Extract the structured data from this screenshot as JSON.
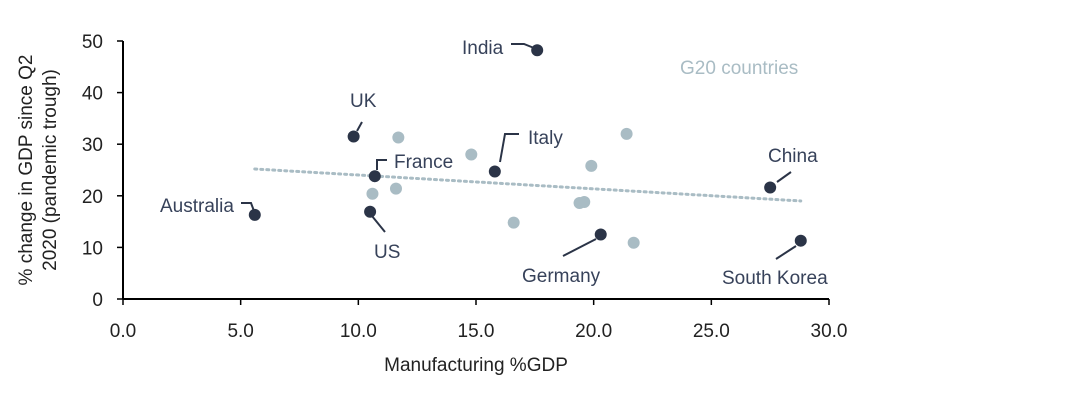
{
  "chart_data": {
    "type": "scatter",
    "title": "",
    "xlabel": "Manufacturing %GDP",
    "ylabel_lines": [
      "% change in GDP since Q2",
      "2020 (pandemic trough)"
    ],
    "xlim": [
      0,
      30
    ],
    "ylim": [
      0,
      50
    ],
    "x_ticks": [
      0,
      5,
      10,
      15,
      20,
      25,
      30
    ],
    "x_tick_labels": [
      "0.0",
      "5.0",
      "10.0",
      "15.0",
      "20.0",
      "25.0",
      "30.0"
    ],
    "y_ticks": [
      0,
      10,
      20,
      30,
      40,
      50
    ],
    "y_tick_labels": [
      "0",
      "10",
      "20",
      "30",
      "40",
      "50"
    ],
    "grid": false,
    "annotation": "G20 countries",
    "colors": {
      "highlight": "#2b3447",
      "other": "#a9bcc4",
      "trend": "#a9bcc4",
      "axis": "#000000"
    },
    "highlighted": [
      {
        "name": "India",
        "x": 17.6,
        "y": 48.2
      },
      {
        "name": "UK",
        "x": 9.8,
        "y": 31.5
      },
      {
        "name": "France",
        "x": 10.7,
        "y": 23.8
      },
      {
        "name": "Italy",
        "x": 15.8,
        "y": 24.7
      },
      {
        "name": "China",
        "x": 27.5,
        "y": 21.6
      },
      {
        "name": "Australia",
        "x": 5.6,
        "y": 16.3
      },
      {
        "name": "US",
        "x": 10.5,
        "y": 16.9
      },
      {
        "name": "Germany",
        "x": 20.3,
        "y": 12.5
      },
      {
        "name": "South Korea",
        "x": 28.8,
        "y": 11.3
      }
    ],
    "others": [
      {
        "x": 11.7,
        "y": 31.3
      },
      {
        "x": 14.8,
        "y": 28.0
      },
      {
        "x": 21.4,
        "y": 32.0
      },
      {
        "x": 19.9,
        "y": 25.8
      },
      {
        "x": 10.6,
        "y": 20.4
      },
      {
        "x": 11.6,
        "y": 21.4
      },
      {
        "x": 19.4,
        "y": 18.6
      },
      {
        "x": 19.6,
        "y": 18.8
      },
      {
        "x": 16.6,
        "y": 14.8
      },
      {
        "x": 21.7,
        "y": 10.9
      }
    ],
    "trendline": {
      "x": [
        5.6,
        28.8
      ],
      "y": [
        25.2,
        19.0
      ]
    }
  }
}
